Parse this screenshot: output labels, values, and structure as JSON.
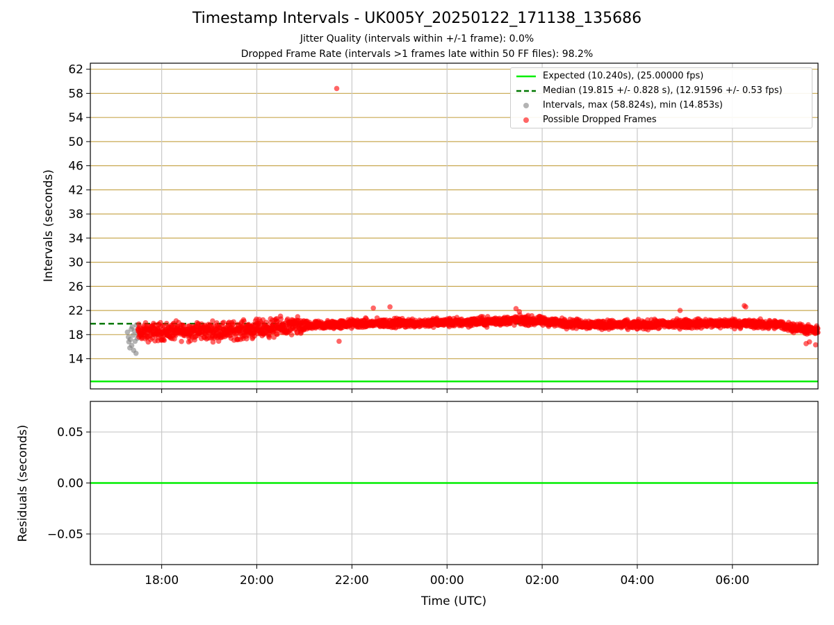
{
  "figure": {
    "title": "Timestamp Intervals - UK005Y_20250122_171138_135686",
    "subtitle1": "Jitter Quality (intervals within +/-1 frame): 0.0%",
    "subtitle2": "Dropped Frame Rate (intervals >1 frames late within 50 FF files): 98.2%"
  },
  "colors": {
    "expected": "#00ee00",
    "median": "#007700",
    "intervals": "#808080",
    "dropped": "#ff0000",
    "hgrid": "#c8a850",
    "vgrid": "#c8c8c8"
  },
  "legend": {
    "expected": "Expected (10.240s), (25.00000 fps)",
    "median": "Median (19.815 +/- 0.828 s), (12.91596 +/- 0.53 fps)",
    "intervals": "Intervals, max (58.824s), min (14.853s)",
    "dropped": "Possible Dropped Frames"
  },
  "chart_data": [
    {
      "type": "scatter",
      "ylabel": "Intervals (seconds)",
      "xlabel": "",
      "x_range_hours_since_17": [
        -0.5,
        14.8
      ],
      "ylim": [
        9.0,
        63.0
      ],
      "yticks": [
        14,
        18,
        22,
        26,
        30,
        34,
        38,
        42,
        46,
        50,
        54,
        58,
        62
      ],
      "grid": {
        "horizontal": true,
        "vertical": true
      },
      "legend_position": "top-right",
      "expected_line": 10.24,
      "median_line": {
        "value": 19.815,
        "x_end_hours": 9.45
      },
      "series": [
        {
          "name": "Intervals, max (58.824s), min (14.853s)",
          "points": [
            [
              0.28,
              18.4
            ],
            [
              0.3,
              17.6
            ],
            [
              0.31,
              16.8
            ],
            [
              0.33,
              15.8
            ],
            [
              0.34,
              17.2
            ],
            [
              0.36,
              18.9
            ],
            [
              0.37,
              16.2
            ],
            [
              0.38,
              19.3
            ],
            [
              0.4,
              17.9
            ],
            [
              0.41,
              15.4
            ],
            [
              0.43,
              18.6
            ],
            [
              0.44,
              16.9
            ],
            [
              0.46,
              14.9
            ],
            [
              0.47,
              19.6
            ],
            [
              0.49,
              17.4
            ],
            [
              0.5,
              18.1
            ]
          ]
        },
        {
          "name": "Possible Dropped Frames",
          "summary": "dense band of several thousand points between 17:30 and 07:45 UTC, mostly 16.5-21 s",
          "band_profile": [
            [
              0.5,
              18.3
            ],
            [
              1.0,
              18.5
            ],
            [
              1.5,
              18.6
            ],
            [
              2.0,
              18.6
            ],
            [
              2.5,
              18.7
            ],
            [
              3.0,
              18.9
            ],
            [
              3.5,
              19.2
            ],
            [
              4.0,
              19.4
            ],
            [
              4.5,
              19.6
            ],
            [
              5.0,
              19.8
            ],
            [
              6.0,
              19.9
            ],
            [
              7.0,
              20.0
            ],
            [
              8.0,
              20.2
            ],
            [
              8.5,
              20.4
            ],
            [
              9.0,
              20.2
            ],
            [
              9.5,
              19.9
            ],
            [
              10.0,
              19.7
            ],
            [
              11.0,
              19.6
            ],
            [
              12.0,
              19.8
            ],
            [
              13.0,
              19.9
            ],
            [
              14.0,
              19.6
            ],
            [
              14.8,
              18.5
            ]
          ],
          "outliers": [
            [
              4.68,
              58.8
            ],
            [
              4.73,
              16.9
            ],
            [
              5.45,
              22.4
            ],
            [
              5.8,
              22.6
            ],
            [
              8.45,
              22.3
            ],
            [
              8.52,
              21.8
            ],
            [
              11.9,
              22.0
            ],
            [
              13.25,
              22.8
            ],
            [
              13.28,
              22.6
            ],
            [
              14.55,
              16.5
            ],
            [
              14.62,
              16.8
            ],
            [
              14.75,
              16.3
            ]
          ]
        }
      ]
    },
    {
      "type": "line",
      "ylabel": "Residuals (seconds)",
      "xlabel": "Time (UTC)",
      "ylim": [
        -0.08,
        0.08
      ],
      "yticks": [
        "0.05",
        "0.00",
        "−0.05"
      ],
      "xticks": [
        "18:00",
        "20:00",
        "22:00",
        "00:00",
        "02:00",
        "04:00",
        "06:00"
      ],
      "grid": {
        "horizontal": true,
        "vertical": true
      },
      "series": [
        {
          "values": [
            0.0,
            0.0
          ]
        }
      ]
    }
  ]
}
